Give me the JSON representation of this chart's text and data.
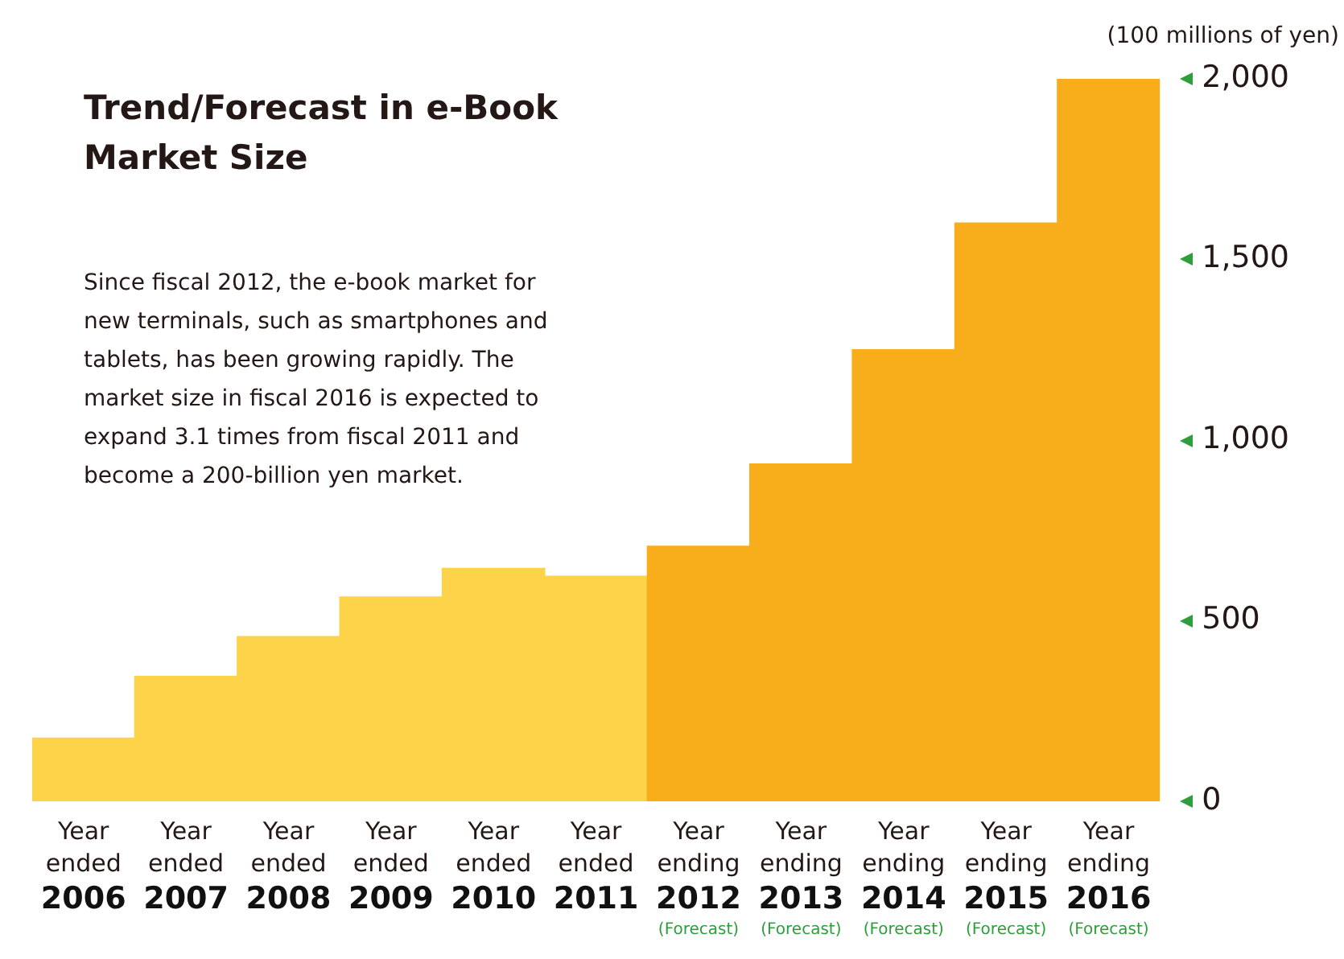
{
  "chart_data": {
    "type": "bar",
    "title": "Trend/Forecast in e-Book Market Size",
    "ylabel": "(100 millions of yen)",
    "annotations": [
      "Since fiscal 2012, the e-book market for new terminals, such as smartphones and tablets, has been growing rapidly. The market size in fiscal 2016 is expected to expand 3.1 times from fiscal 2011 and become a 200-billion yen market."
    ],
    "categories": [
      "Year\nended\n2006",
      "Year\nended\n2007",
      "Year\nended\n2008",
      "Year\nended\n2009",
      "Year\nended\n2010",
      "Year\nended\n2011",
      "Year\nending\n2012\n(Forecast)",
      "Year\nending\n2013\n(Forecast)",
      "Year\nending\n2014\n(Forecast)",
      "Year\nending\n2015\n(Forecast)",
      "Year\nending\n2016\n(Forecast)"
    ],
    "values": [
      175,
      346,
      456,
      566,
      645,
      623,
      706,
      934,
      1250,
      1601,
      2000
    ],
    "colors": [
      "#fdd34a",
      "#fdd34a",
      "#fdd34a",
      "#fdd34a",
      "#fdd34a",
      "#fdd34a",
      "#f8ae1a",
      "#f8ae1a",
      "#f8ae1a",
      "#f8ae1a",
      "#f8ae1a"
    ],
    "ylim": [
      0,
      2000
    ],
    "yticks": [
      0,
      500,
      {
        "value": 1000,
        "label": "1,000"
      },
      {
        "value": 1500,
        "label": "1,500"
      },
      {
        "value": 2000,
        "label": "2,000"
      }
    ],
    "grid": false,
    "legend": false
  }
}
